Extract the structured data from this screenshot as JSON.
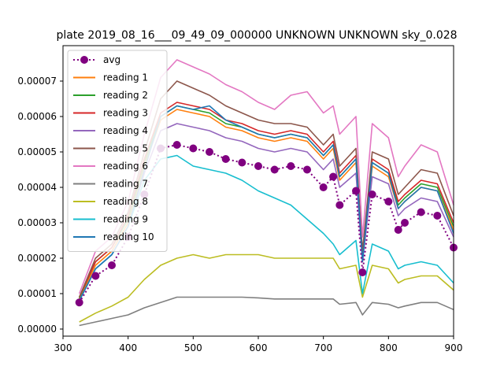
{
  "chart_data": {
    "type": "line",
    "title": "plate 2019_08_16___09_49_09_000000 UNKNOWN UNKNOWN sky_0.028",
    "xlabel": "",
    "ylabel": "",
    "xlim": [
      300,
      900
    ],
    "ylim": [
      -2e-06,
      8e-05
    ],
    "grid": false,
    "legend_position": "top-left",
    "x_ticks": [
      300,
      400,
      500,
      600,
      700,
      800,
      900
    ],
    "y_ticks": [
      0,
      1e-05,
      2e-05,
      3e-05,
      4e-05,
      5e-05,
      6e-05,
      7e-05
    ],
    "x_tick_labels": [
      "300",
      "400",
      "500",
      "600",
      "700",
      "800",
      "900"
    ],
    "y_tick_labels": [
      "0.00000",
      "0.00001",
      "0.00002",
      "0.00003",
      "0.00004",
      "0.00005",
      "0.00006",
      "0.00007"
    ],
    "x": [
      325,
      350,
      375,
      400,
      425,
      450,
      475,
      500,
      525,
      550,
      575,
      600,
      625,
      650,
      675,
      700,
      715,
      725,
      750,
      760,
      775,
      800,
      815,
      825,
      850,
      875,
      900
    ],
    "series": [
      {
        "name": "avg",
        "color": "#800080",
        "style": "dotted-marker",
        "values": [
          7.5e-06,
          1.5e-05,
          1.8e-05,
          2.6e-05,
          3.8e-05,
          5.1e-05,
          5.2e-05,
          5.1e-05,
          5e-05,
          4.8e-05,
          4.7e-05,
          4.6e-05,
          4.5e-05,
          4.6e-05,
          4.5e-05,
          4e-05,
          4.3e-05,
          3.5e-05,
          3.9e-05,
          1.6e-05,
          3.8e-05,
          3.6e-05,
          2.8e-05,
          3e-05,
          3.3e-05,
          3.2e-05,
          2.3e-05
        ]
      },
      {
        "name": "reading 1",
        "color": "#ff7f0e",
        "values": [
          8.5e-06,
          1.8e-05,
          2.2e-05,
          3e-05,
          4.6e-05,
          5.9e-05,
          6.2e-05,
          6.1e-05,
          6e-05,
          5.7e-05,
          5.6e-05,
          5.4e-05,
          5.3e-05,
          5.4e-05,
          5.3e-05,
          4.8e-05,
          5.1e-05,
          4.2e-05,
          4.7e-05,
          2e-05,
          4.6e-05,
          4.3e-05,
          3.4e-05,
          3.6e-05,
          4e-05,
          3.9e-05,
          2.8e-05
        ]
      },
      {
        "name": "reading 2",
        "color": "#2ca02c",
        "values": [
          8.8e-06,
          1.9e-05,
          2.3e-05,
          3.1e-05,
          4.7e-05,
          6e-05,
          6.3e-05,
          6.2e-05,
          6.1e-05,
          5.8e-05,
          5.7e-05,
          5.5e-05,
          5.4e-05,
          5.5e-05,
          5.4e-05,
          4.9e-05,
          5.2e-05,
          4.3e-05,
          4.8e-05,
          2e-05,
          4.7e-05,
          4.4e-05,
          3.5e-05,
          3.7e-05,
          4.1e-05,
          4e-05,
          2.9e-05
        ]
      },
      {
        "name": "reading 3",
        "color": "#d62728",
        "values": [
          9e-06,
          1.9e-05,
          2.3e-05,
          3.2e-05,
          4.8e-05,
          6.1e-05,
          6.4e-05,
          6.3e-05,
          6.2e-05,
          5.9e-05,
          5.8e-05,
          5.6e-05,
          5.5e-05,
          5.6e-05,
          5.5e-05,
          5e-05,
          5.3e-05,
          4.4e-05,
          4.9e-05,
          2.1e-05,
          4.8e-05,
          4.5e-05,
          3.6e-05,
          3.8e-05,
          4.2e-05,
          4.1e-05,
          3e-05
        ]
      },
      {
        "name": "reading 4",
        "color": "#9467bd",
        "values": [
          8e-06,
          1.7e-05,
          2.1e-05,
          2.9e-05,
          4.4e-05,
          5.6e-05,
          5.8e-05,
          5.7e-05,
          5.6e-05,
          5.4e-05,
          5.3e-05,
          5.1e-05,
          5e-05,
          5.1e-05,
          5e-05,
          4.5e-05,
          4.8e-05,
          4e-05,
          4.4e-05,
          1.9e-05,
          4.3e-05,
          4.1e-05,
          3.2e-05,
          3.4e-05,
          3.7e-05,
          3.6e-05,
          2.6e-05
        ]
      },
      {
        "name": "reading 5",
        "color": "#8c564b",
        "values": [
          9e-06,
          2e-05,
          2.4e-05,
          3.3e-05,
          5e-05,
          6.5e-05,
          7e-05,
          6.8e-05,
          6.6e-05,
          6.3e-05,
          6.1e-05,
          5.9e-05,
          5.8e-05,
          5.8e-05,
          5.7e-05,
          5.2e-05,
          5.5e-05,
          4.6e-05,
          5.1e-05,
          2.2e-05,
          5e-05,
          4.8e-05,
          3.8e-05,
          4e-05,
          4.5e-05,
          4.4e-05,
          3.2e-05
        ]
      },
      {
        "name": "reading 6",
        "color": "#e377c2",
        "values": [
          1e-05,
          2.2e-05,
          2.6e-05,
          3.6e-05,
          5.5e-05,
          7.1e-05,
          7.6e-05,
          7.4e-05,
          7.2e-05,
          6.9e-05,
          6.7e-05,
          6.4e-05,
          6.2e-05,
          6.6e-05,
          6.7e-05,
          6.1e-05,
          6.3e-05,
          5.5e-05,
          6e-05,
          2.6e-05,
          5.8e-05,
          5.4e-05,
          4.3e-05,
          4.6e-05,
          5.2e-05,
          5e-05,
          3.5e-05
        ]
      },
      {
        "name": "reading 7",
        "color": "#7f7f7f",
        "values": [
          1e-06,
          2e-06,
          3e-06,
          4e-06,
          6e-06,
          7.5e-06,
          9e-06,
          9e-06,
          9e-06,
          9e-06,
          9e-06,
          8.8e-06,
          8.5e-06,
          8.5e-06,
          8.5e-06,
          8.5e-06,
          8.5e-06,
          7e-06,
          7.5e-06,
          4e-06,
          7.5e-06,
          7e-06,
          6e-06,
          6.5e-06,
          7.5e-06,
          7.5e-06,
          5.5e-06
        ]
      },
      {
        "name": "reading 8",
        "color": "#bcbd22",
        "values": [
          2e-06,
          4.5e-06,
          6.5e-06,
          9e-06,
          1.4e-05,
          1.8e-05,
          2e-05,
          2.1e-05,
          2e-05,
          2.1e-05,
          2.1e-05,
          2.1e-05,
          2e-05,
          2e-05,
          2e-05,
          2e-05,
          2e-05,
          1.7e-05,
          1.8e-05,
          9e-06,
          1.8e-05,
          1.7e-05,
          1.3e-05,
          1.4e-05,
          1.5e-05,
          1.5e-05,
          1.1e-05
        ]
      },
      {
        "name": "reading 9",
        "color": "#17becf",
        "values": [
          8e-06,
          1.7e-05,
          2.1e-05,
          2.9e-05,
          4.2e-05,
          4.8e-05,
          4.9e-05,
          4.6e-05,
          4.5e-05,
          4.4e-05,
          4.2e-05,
          3.9e-05,
          3.7e-05,
          3.5e-05,
          3.1e-05,
          2.7e-05,
          2.4e-05,
          2.1e-05,
          2.5e-05,
          1e-05,
          2.4e-05,
          2.2e-05,
          1.7e-05,
          1.8e-05,
          1.9e-05,
          1.8e-05,
          1.3e-05
        ]
      },
      {
        "name": "reading 10",
        "color": "#1f77b4",
        "values": [
          8e-06,
          1.7e-05,
          2.1e-05,
          2.9e-05,
          4.5e-05,
          6e-05,
          6.3e-05,
          6.2e-05,
          6.3e-05,
          5.9e-05,
          5.7e-05,
          5.5e-05,
          5.4e-05,
          5.5e-05,
          5.4e-05,
          4.9e-05,
          5.2e-05,
          4.3e-05,
          4.8e-05,
          1.9e-05,
          4.7e-05,
          4.4e-05,
          3.4e-05,
          3.6e-05,
          4e-05,
          3.9e-05,
          2.7e-05
        ]
      }
    ]
  }
}
